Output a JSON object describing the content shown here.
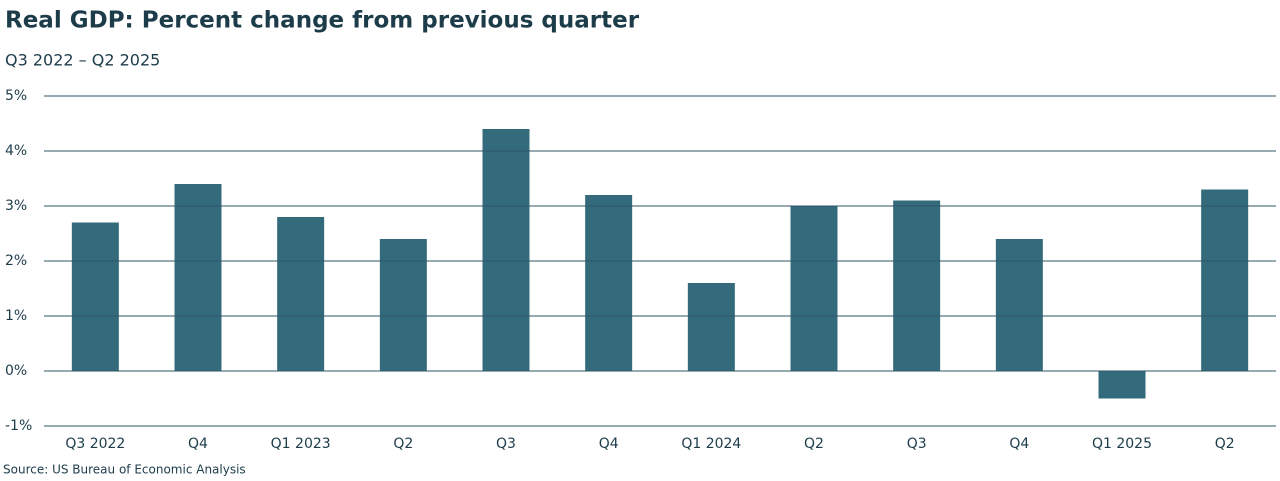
{
  "chart_data": {
    "type": "bar",
    "title": "Real GDP: Percent change from previous quarter",
    "subtitle": "Q3 2022 – Q2 2025",
    "source": "Source: US Bureau of Economic Analysis",
    "categories": [
      "Q3 2022",
      "Q4",
      "Q1 2023",
      "Q2",
      "Q3",
      "Q4",
      "Q1 2024",
      "Q2",
      "Q3",
      "Q4",
      "Q1 2025",
      "Q2"
    ],
    "values": [
      2.7,
      3.4,
      2.8,
      2.4,
      4.4,
      3.2,
      1.6,
      3.0,
      3.1,
      2.4,
      -0.5,
      3.3
    ],
    "color": "#336b7d",
    "ylim": [
      -1,
      5
    ],
    "yticks": [
      {
        "value": -1,
        "label": "-1%"
      },
      {
        "value": 0,
        "label": "0%"
      },
      {
        "value": 1,
        "label": "1%"
      },
      {
        "value": 2,
        "label": "2%"
      },
      {
        "value": 3,
        "label": "3%"
      },
      {
        "value": 4,
        "label": "4%"
      },
      {
        "value": 5,
        "label": "5%"
      }
    ],
    "grid": true
  }
}
